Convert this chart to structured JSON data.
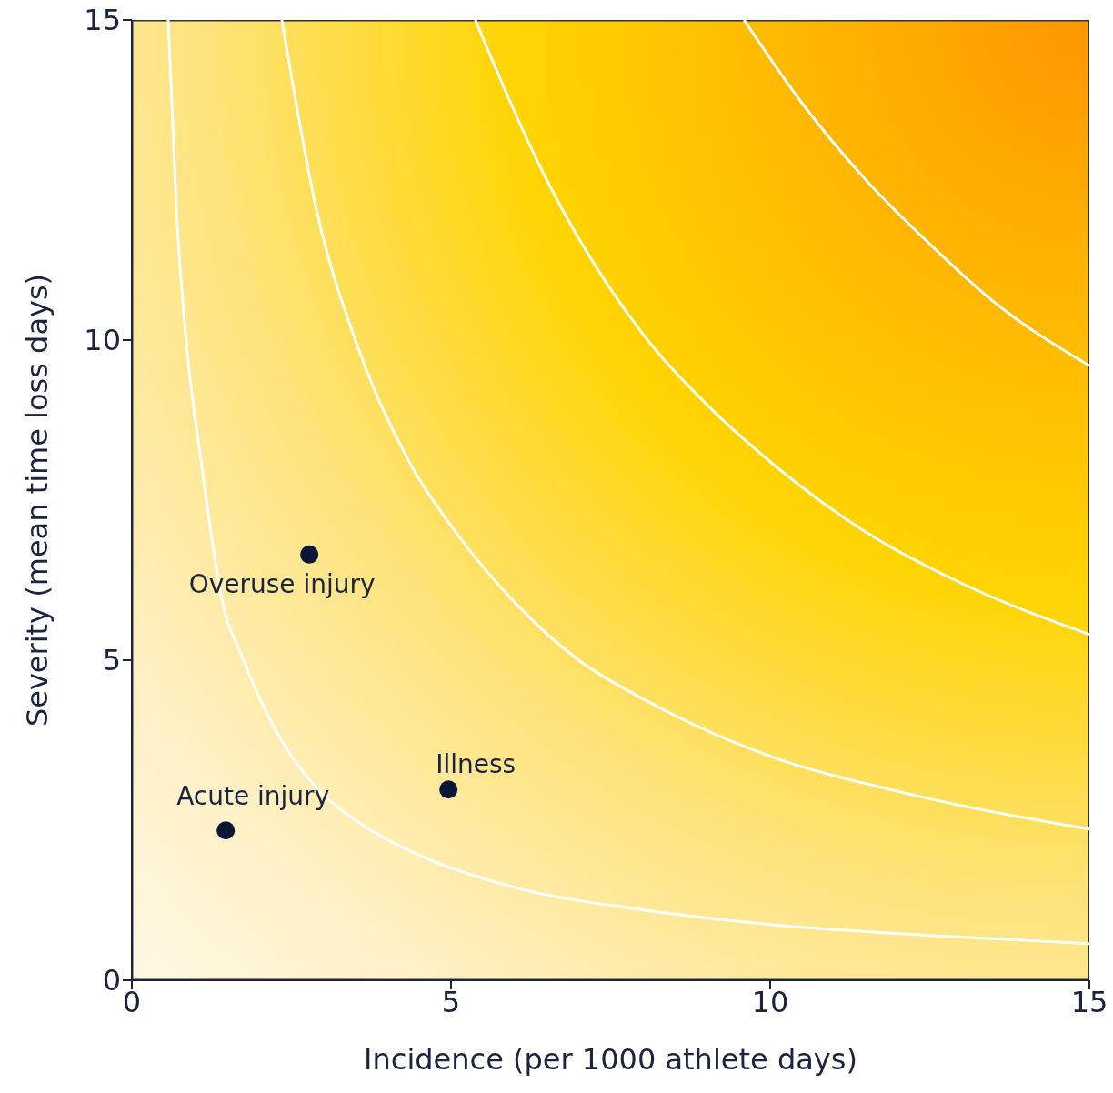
{
  "chart_data": {
    "type": "scatter",
    "xlabel": "Incidence (per 1000 athlete days)",
    "ylabel": "Severity (mean time loss days)",
    "xlim": [
      0,
      15
    ],
    "ylim": [
      0,
      15
    ],
    "xticks": [
      0,
      5,
      10,
      15
    ],
    "yticks": [
      0,
      5,
      10,
      15
    ],
    "series": [
      {
        "type": "line",
        "marker": "none",
        "color": "#ffffff",
        "x": [
          0.57,
          0.7,
          0.85,
          1.1,
          1.4,
          1.75,
          2.2,
          2.9,
          3.5,
          4.4,
          6,
          8,
          10,
          12.5,
          15
        ],
        "values": [
          15,
          12,
          10,
          8,
          6,
          5,
          4,
          3,
          2.5,
          2,
          1.45,
          1.1,
          0.87,
          0.7,
          0.57
        ]
      },
      {
        "type": "line",
        "marker": "none",
        "color": "#ffffff",
        "x": [
          2.35,
          2.9,
          3.5,
          4.4,
          5,
          6,
          7,
          8,
          10,
          12,
          15
        ],
        "values": [
          15,
          12,
          10,
          8,
          7.1,
          5.9,
          5,
          4.4,
          3.5,
          2.95,
          2.36
        ]
      },
      {
        "type": "line",
        "marker": "none",
        "color": "#ffffff",
        "x": [
          5.38,
          6.5,
          8,
          9,
          10,
          11.5,
          13,
          15
        ],
        "values": [
          15,
          12.5,
          10.1,
          9,
          8.1,
          7,
          6.2,
          5.4
        ]
      },
      {
        "type": "line",
        "marker": "none",
        "color": "#ffffff",
        "x": [
          9.59,
          10.5,
          11.5,
          12.5,
          13.5,
          15
        ],
        "values": [
          15,
          13.7,
          12.5,
          11.5,
          10.6,
          9.6
        ]
      },
      {
        "name": "Acute injury",
        "marker": "circle",
        "color": "#0a1633",
        "x": [
          1.47
        ],
        "values": [
          2.34
        ]
      },
      {
        "name": "Overuse injury",
        "marker": "circle",
        "color": "#0a1633",
        "x": [
          2.78
        ],
        "values": [
          6.65
        ]
      },
      {
        "name": "Illness",
        "marker": "circle",
        "color": "#0a1633",
        "x": [
          4.96
        ],
        "values": [
          2.98
        ]
      }
    ]
  }
}
